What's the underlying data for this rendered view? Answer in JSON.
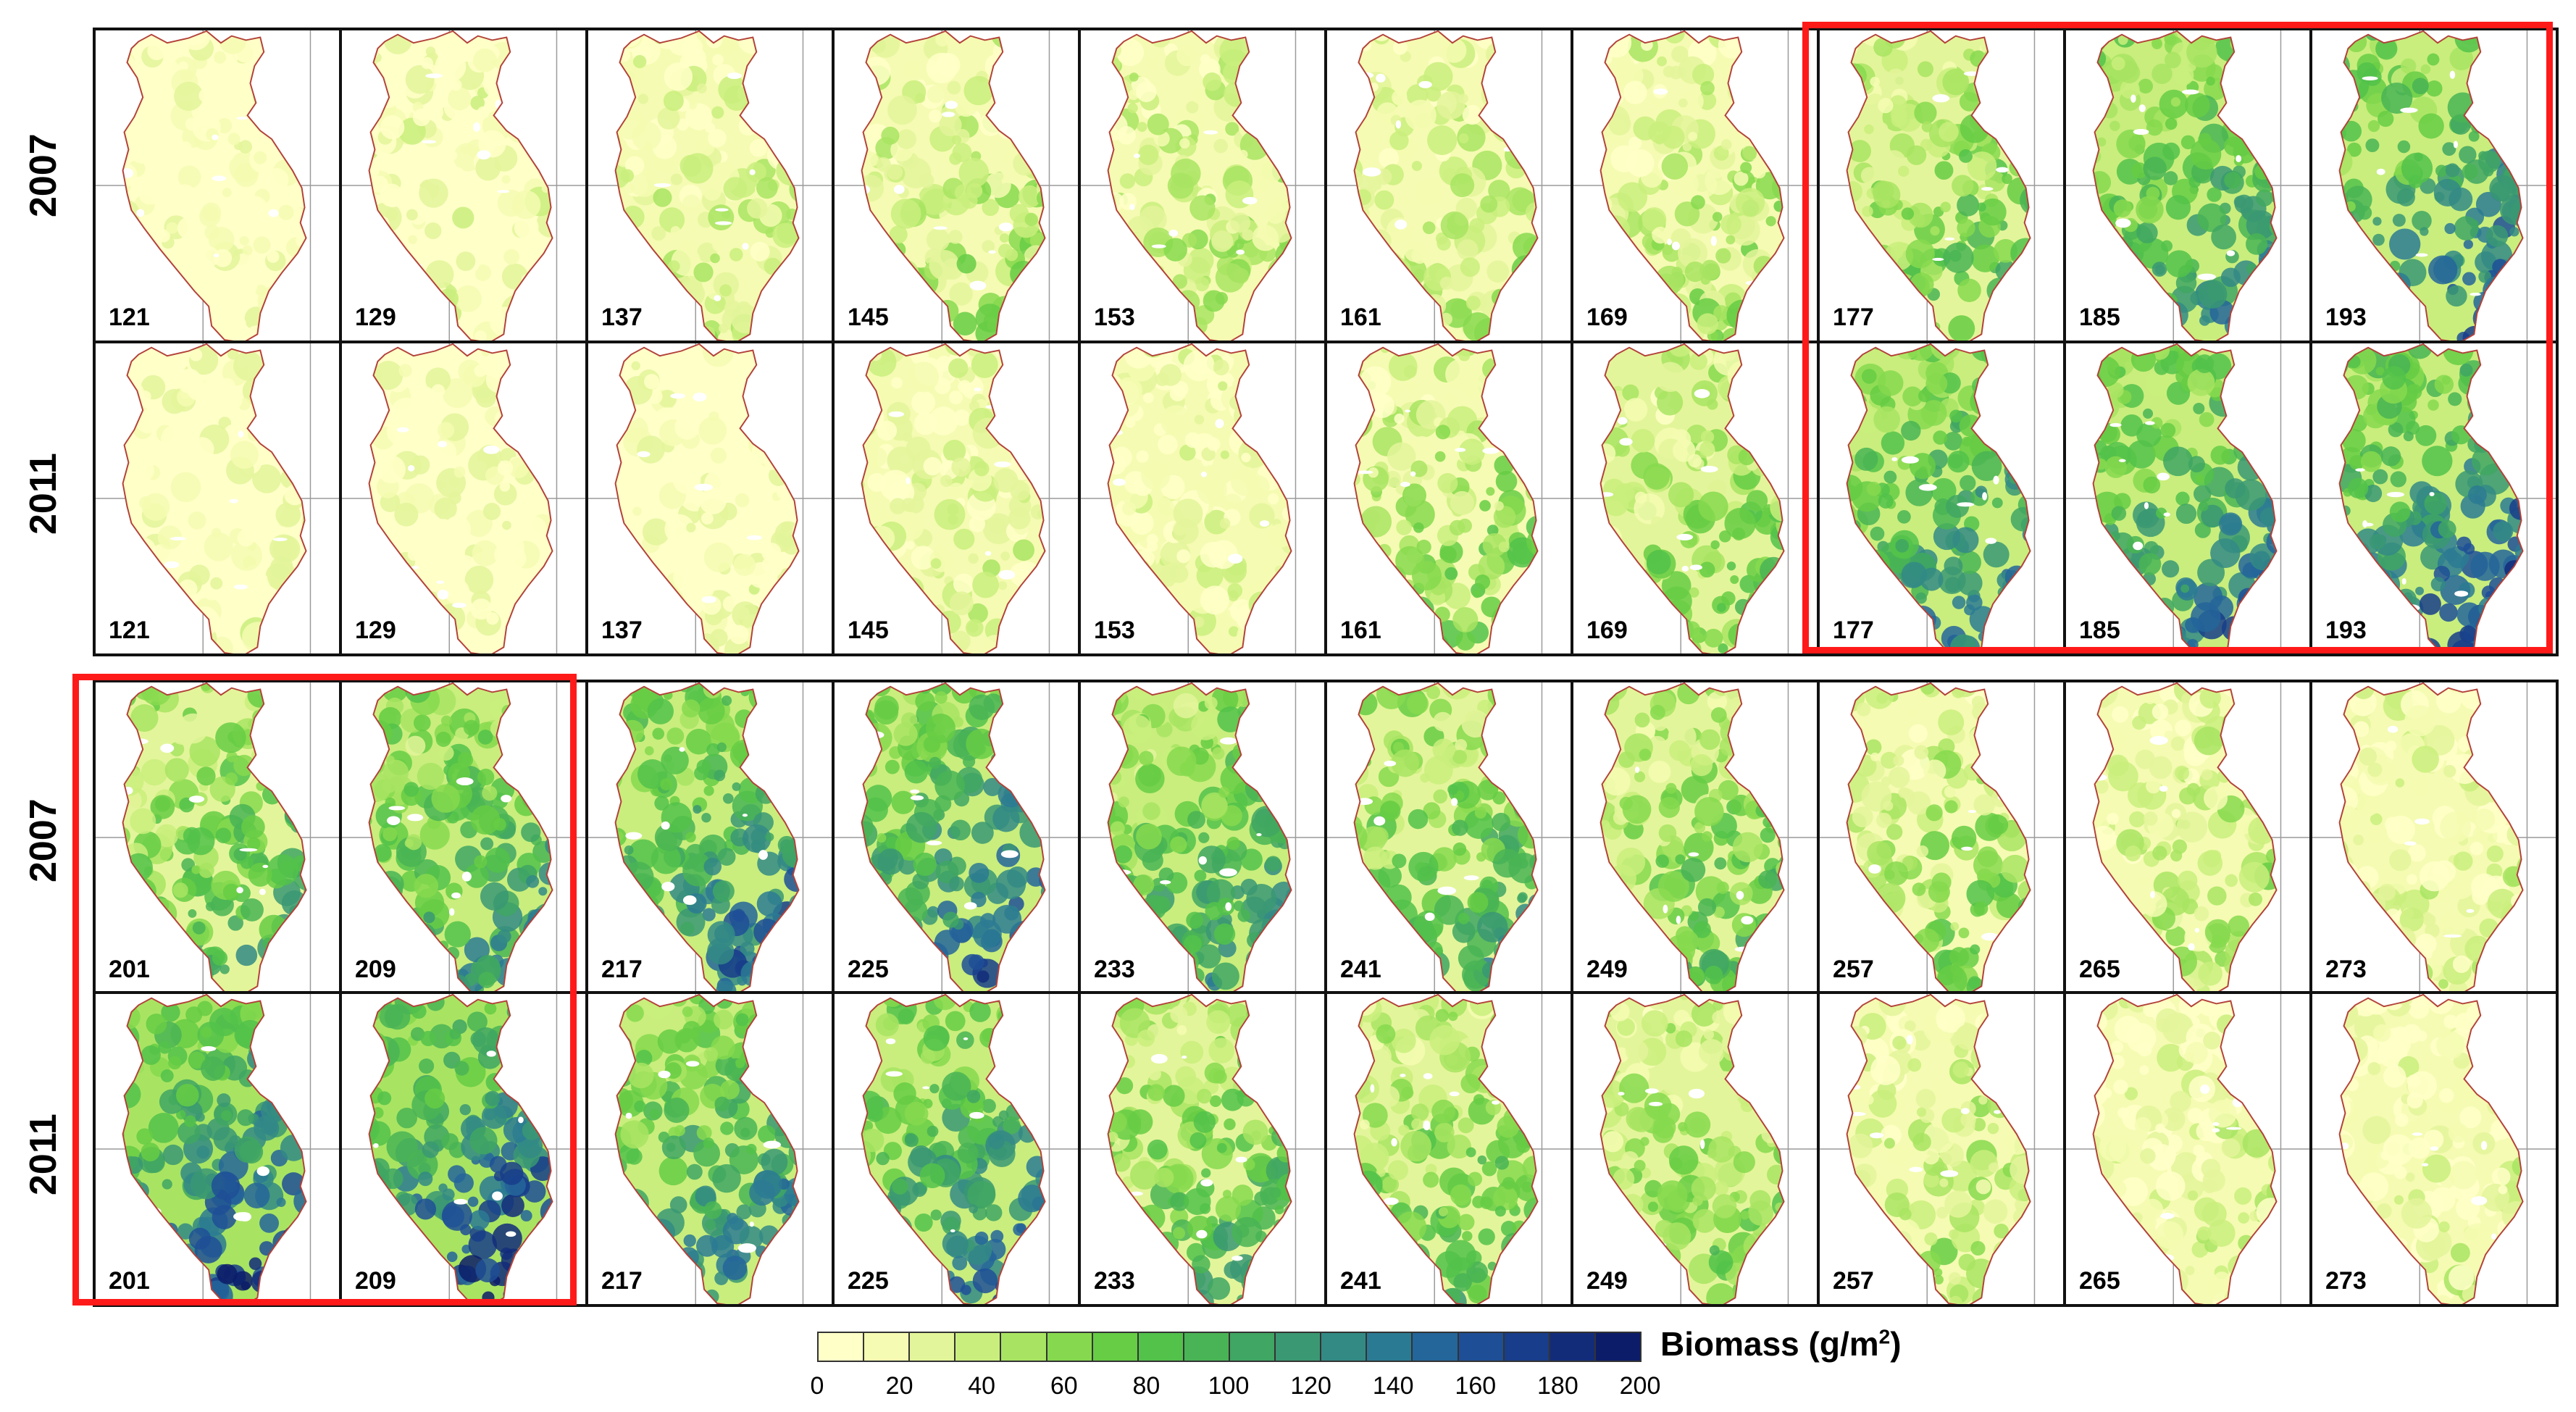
{
  "colors": {
    "outline": "#b3413a",
    "highlight": "#ff1a1a",
    "legend_ramp": [
      "#ffffc8",
      "#f5fbb2",
      "#e3f59a",
      "#c9ee7d",
      "#a8e462",
      "#86d94e",
      "#66cd44",
      "#52c24a",
      "#49b455",
      "#40a663",
      "#3a9873",
      "#338a85",
      "#2b7a93",
      "#24659a",
      "#1e4f96",
      "#183d8a",
      "#132c7a",
      "#0c1c69"
    ]
  },
  "figure": {
    "block_top": {
      "row_2007": {
        "year": "2007",
        "days": [
          "121",
          "129",
          "137",
          "145",
          "153",
          "161",
          "169",
          "177",
          "185",
          "193"
        ],
        "biomass_level": [
          0.02,
          0.08,
          0.15,
          0.22,
          0.2,
          0.18,
          0.22,
          0.35,
          0.52,
          0.62
        ]
      },
      "row_2011": {
        "year": "2011",
        "days": [
          "121",
          "129",
          "137",
          "145",
          "153",
          "161",
          "169",
          "177",
          "185",
          "193"
        ],
        "biomass_level": [
          0.04,
          0.04,
          0.05,
          0.12,
          0.1,
          0.28,
          0.3,
          0.58,
          0.6,
          0.68
        ]
      }
    },
    "block_bottom": {
      "row_2007": {
        "year": "2007",
        "days": [
          "201",
          "209",
          "217",
          "225",
          "233",
          "241",
          "249",
          "257",
          "265",
          "273"
        ],
        "biomass_level": [
          0.42,
          0.5,
          0.62,
          0.65,
          0.5,
          0.44,
          0.36,
          0.28,
          0.2,
          0.12
        ]
      },
      "row_2011": {
        "year": "2011",
        "days": [
          "201",
          "209",
          "217",
          "225",
          "233",
          "241",
          "249",
          "257",
          "265",
          "273"
        ],
        "biomass_level": [
          0.72,
          0.74,
          0.58,
          0.6,
          0.42,
          0.38,
          0.3,
          0.2,
          0.12,
          0.1
        ]
      }
    }
  },
  "legend": {
    "title": "Biomass (g/m",
    "title_sup": "2",
    "title_close": ")",
    "ticks": [
      "0",
      "20",
      "40",
      "60",
      "80",
      "100",
      "120",
      "140",
      "160",
      "180",
      "200"
    ]
  }
}
